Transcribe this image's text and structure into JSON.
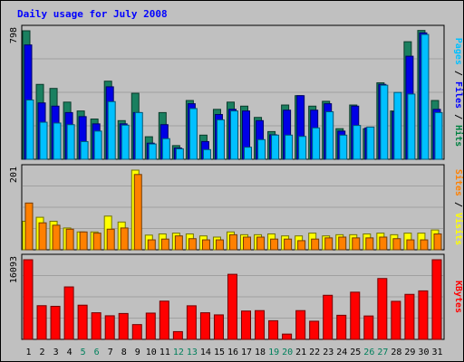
{
  "chart_data": {
    "type": "bar",
    "title": "Daily usage for July 2008",
    "categories": [
      "1",
      "2",
      "3",
      "4",
      "5",
      "6",
      "7",
      "8",
      "9",
      "10",
      "11",
      "12",
      "13",
      "14",
      "15",
      "16",
      "17",
      "18",
      "19",
      "20",
      "21",
      "22",
      "23",
      "24",
      "25",
      "26",
      "27",
      "28",
      "29",
      "30",
      "31"
    ],
    "weekend_days": [
      "5",
      "6",
      "12",
      "13",
      "19",
      "20",
      "26",
      "27"
    ],
    "panels": [
      {
        "name": "hits-files-pages",
        "ymax": 798,
        "ymax_label": "798",
        "side_label": [
          {
            "text": "Pages",
            "color": "#00c0ff"
          },
          {
            "text": " / ",
            "color": "#000000"
          },
          {
            "text": "Files",
            "color": "#0000ff"
          },
          {
            "text": " / ",
            "color": "#000000"
          },
          {
            "text": "Hits",
            "color": "#008040"
          }
        ],
        "series": [
          {
            "name": "Hits",
            "color": "#1a8060",
            "values": [
              798,
              465,
              440,
              355,
              300,
              250,
              485,
              240,
              410,
              140,
              290,
              85,
              365,
              150,
              310,
              355,
              330,
              260,
              172,
              337,
              395,
              330,
              360,
              190,
              337,
              190,
              475,
              300,
              730,
              800,
              365
            ]
          },
          {
            "name": "Files",
            "color": "#0000e6",
            "values": [
              710,
              350,
              330,
              290,
              265,
              220,
              450,
              220,
              290,
              100,
              215,
              70,
              345,
              110,
              278,
              310,
              300,
              240,
              152,
              305,
              395,
              305,
              345,
              175,
              330,
              195,
              465,
              295,
              640,
              785,
              310
            ]
          },
          {
            "name": "Pages",
            "color": "#00c0ff",
            "values": [
              368,
              230,
              225,
              215,
              110,
              175,
              358,
              212,
              290,
              95,
              128,
              65,
              315,
              60,
              245,
              300,
              75,
              122,
              150,
              150,
              142,
              195,
              295,
              150,
              210,
              200,
              460,
              415,
              405,
              775,
              290
            ]
          }
        ]
      },
      {
        "name": "visits-sites",
        "ymax": 201,
        "ymax_label": "201",
        "side_label": [
          {
            "text": "Sites",
            "color": "#ff8000"
          },
          {
            "text": " / ",
            "color": "#000000"
          },
          {
            "text": "Visits",
            "color": "#ffff00"
          }
        ],
        "series": [
          {
            "name": "Visits",
            "color": "#ffff00",
            "values": [
              72,
              82,
              72,
              55,
              45,
              45,
              85,
              70,
              201,
              37,
              40,
              42,
              40,
              35,
              32,
              45,
              38,
              38,
              40,
              35,
              35,
              42,
              35,
              38,
              38,
              40,
              42,
              38,
              42,
              42,
              50
            ]
          },
          {
            "name": "Sites",
            "color": "#ff8000",
            "values": [
              118,
              68,
              62,
              52,
              45,
              42,
              52,
              55,
              190,
              25,
              27,
              35,
              28,
              25,
              25,
              38,
              32,
              32,
              27,
              27,
              23,
              27,
              30,
              32,
              30,
              30,
              32,
              28,
              25,
              25,
              40
            ]
          }
        ]
      },
      {
        "name": "kbytes",
        "ymax": 16093,
        "ymax_label": "16093",
        "side_label": [
          {
            "text": "KBytes",
            "color": "#ff0000"
          }
        ],
        "series": [
          {
            "name": "KBytes",
            "color": "#ff0000",
            "values": [
              16093,
              6810,
              6680,
              10600,
              6910,
              5380,
              4770,
              5230,
              2990,
              5310,
              7730,
              1570,
              6790,
              5380,
              4950,
              13150,
              5730,
              5810,
              3770,
              1070,
              5810,
              3670,
              8910,
              4870,
              9540,
              4730,
              12300,
              7690,
              9100,
              9800,
              16093
            ]
          }
        ]
      }
    ]
  }
}
